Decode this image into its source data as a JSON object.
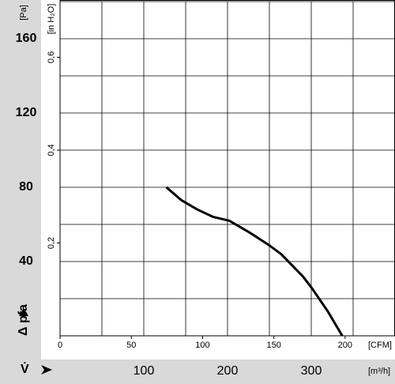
{
  "chart_data": {
    "type": "line",
    "x_label": "V̇",
    "y_label": "Δ pfa",
    "x_unit": "[m³/h]",
    "y_unit": "[Pa]",
    "x2_unit": "[CFM]",
    "y2_unit": "[in H₂O]",
    "x": [
      127,
      145,
      164,
      183,
      202,
      225,
      249,
      264,
      277,
      290,
      301,
      320,
      337
    ],
    "series": [
      {
        "color": "#000000",
        "values": [
          80,
          73,
          68,
          64,
          62,
          56,
          49,
          44,
          38,
          32,
          25.5,
          13,
          0
        ]
      }
    ],
    "xlim": [
      0,
      400
    ],
    "xticks": [
      100,
      200,
      300
    ],
    "xminor": [
      50,
      150,
      250,
      350
    ],
    "ylim": [
      0,
      180
    ],
    "yticks": [
      40,
      80,
      120,
      160
    ],
    "yminor": [
      20,
      60,
      100,
      140,
      180
    ],
    "x2lim": [
      0,
      235
    ],
    "x2ticks": [
      0,
      50,
      100,
      150,
      200
    ],
    "y2lim": [
      0,
      0.72
    ],
    "y2ticks": [
      {
        "value": 0.2,
        "label": "0,2"
      },
      {
        "value": 0.4,
        "label": "0,4"
      },
      {
        "value": 0.6,
        "label": "0,6"
      }
    ],
    "grid": true
  }
}
